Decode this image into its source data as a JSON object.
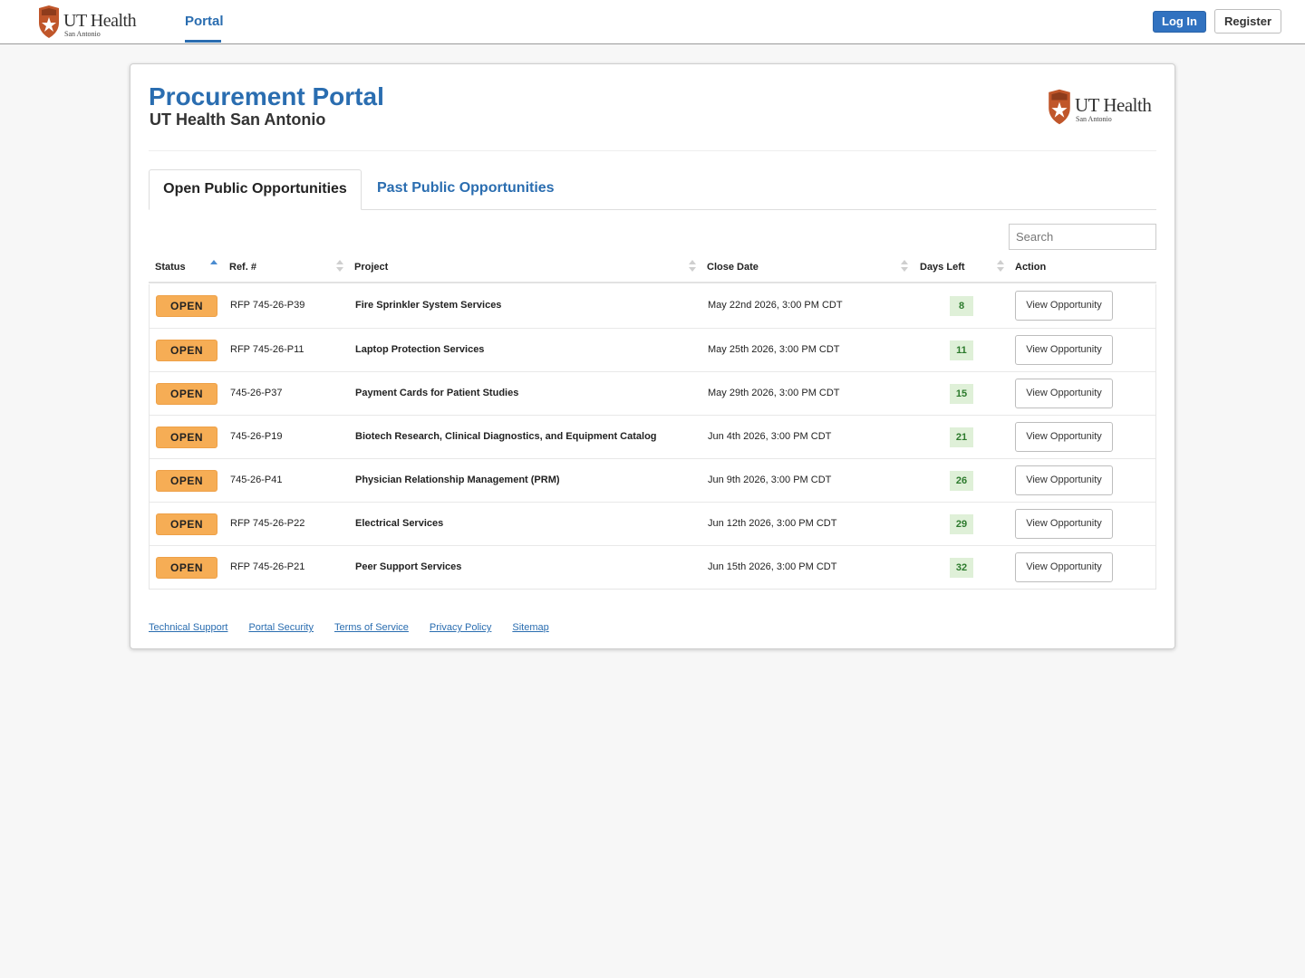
{
  "header": {
    "brand_name": "UT Health",
    "brand_sub": "San Antonio",
    "nav_portal": "Portal",
    "login_label": "Log In",
    "register_label": "Register"
  },
  "panel": {
    "title": "Procurement Portal",
    "subtitle": "UT Health San Antonio",
    "logo_name": "UT Health",
    "logo_sub": "San Antonio"
  },
  "tabs": {
    "open": "Open Public Opportunities",
    "past": "Past Public Opportunities"
  },
  "search": {
    "placeholder": "Search"
  },
  "table": {
    "headers": {
      "status": "Status",
      "ref": "Ref. #",
      "project": "Project",
      "close_date": "Close Date",
      "days_left": "Days Left",
      "action": "Action"
    },
    "rows": [
      {
        "status": "OPEN",
        "ref": "RFP 745-26-P39",
        "project": "Fire Sprinkler System Services",
        "close_date": "May 22nd 2026, 3:00 PM CDT",
        "days_left": "8",
        "action": "View Opportunity"
      },
      {
        "status": "OPEN",
        "ref": "RFP 745-26-P11",
        "project": "Laptop Protection Services",
        "close_date": "May 25th 2026, 3:00 PM CDT",
        "days_left": "11",
        "action": "View Opportunity"
      },
      {
        "status": "OPEN",
        "ref": "745-26-P37",
        "project": "Payment Cards for Patient Studies",
        "close_date": "May 29th 2026, 3:00 PM CDT",
        "days_left": "15",
        "action": "View Opportunity"
      },
      {
        "status": "OPEN",
        "ref": "745-26-P19",
        "project": "Biotech Research, Clinical Diagnostics, and Equipment Catalog",
        "close_date": "Jun 4th 2026, 3:00 PM CDT",
        "days_left": "21",
        "action": "View Opportunity"
      },
      {
        "status": "OPEN",
        "ref": "745-26-P41",
        "project": "Physician Relationship Management (PRM)",
        "close_date": "Jun 9th 2026, 3:00 PM CDT",
        "days_left": "26",
        "action": "View Opportunity"
      },
      {
        "status": "OPEN",
        "ref": "RFP 745-26-P22",
        "project": "Electrical Services",
        "close_date": "Jun 12th 2026, 3:00 PM CDT",
        "days_left": "29",
        "action": "View Opportunity"
      },
      {
        "status": "OPEN",
        "ref": "RFP 745-26-P21",
        "project": "Peer Support Services",
        "close_date": "Jun 15th 2026, 3:00 PM CDT",
        "days_left": "32",
        "action": "View Opportunity"
      }
    ]
  },
  "footer": {
    "links": [
      "Technical Support",
      "Portal Security",
      "Terms of Service",
      "Privacy Policy",
      "Sitemap"
    ]
  },
  "colors": {
    "brand_blue": "#2a6db0",
    "login_blue": "#3172c0",
    "open_badge": "#f6ad55",
    "days_badge_bg": "#dff0d8",
    "days_badge_text": "#2c7a2c",
    "shield": "#c0562a"
  },
  "icons": {
    "brand_logo": "shield-star-icon",
    "sort_active": "sort-ascending-icon",
    "sort_inactive": "sort-both-icon"
  }
}
